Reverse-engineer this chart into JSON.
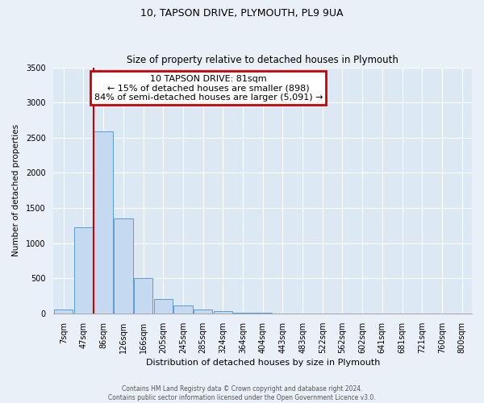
{
  "title": "10, TAPSON DRIVE, PLYMOUTH, PL9 9UA",
  "subtitle": "Size of property relative to detached houses in Plymouth",
  "xlabel": "Distribution of detached houses by size in Plymouth",
  "ylabel": "Number of detached properties",
  "bar_labels": [
    "7sqm",
    "47sqm",
    "86sqm",
    "126sqm",
    "166sqm",
    "205sqm",
    "245sqm",
    "285sqm",
    "324sqm",
    "364sqm",
    "404sqm",
    "443sqm",
    "483sqm",
    "522sqm",
    "562sqm",
    "602sqm",
    "641sqm",
    "681sqm",
    "721sqm",
    "760sqm",
    "800sqm"
  ],
  "bar_values": [
    50,
    1230,
    2590,
    1350,
    500,
    200,
    110,
    50,
    30,
    15,
    5,
    3,
    2,
    0,
    0,
    0,
    0,
    0,
    0,
    0,
    0
  ],
  "bar_color": "#c5d9f1",
  "bar_edge_color": "#5b9bd5",
  "red_line_index": 2,
  "annotation_line1": "10 TAPSON DRIVE: 81sqm",
  "annotation_line2": "← 15% of detached houses are smaller (898)",
  "annotation_line3": "84% of semi-detached houses are larger (5,091) →",
  "annotation_box_edge_color": "#cc0000",
  "red_line_color": "#cc0000",
  "ylim": [
    0,
    3500
  ],
  "yticks": [
    0,
    500,
    1000,
    1500,
    2000,
    2500,
    3000,
    3500
  ],
  "footer_line1": "Contains HM Land Registry data © Crown copyright and database right 2024.",
  "footer_line2": "Contains public sector information licensed under the Open Government Licence v3.0.",
  "bg_color": "#eaf0f8",
  "plot_bg_color": "#dce8f4",
  "grid_color": "#ffffff",
  "title_fontsize": 9,
  "subtitle_fontsize": 8.5,
  "xlabel_fontsize": 8,
  "ylabel_fontsize": 7.5,
  "tick_fontsize": 7,
  "annotation_fontsize": 8
}
